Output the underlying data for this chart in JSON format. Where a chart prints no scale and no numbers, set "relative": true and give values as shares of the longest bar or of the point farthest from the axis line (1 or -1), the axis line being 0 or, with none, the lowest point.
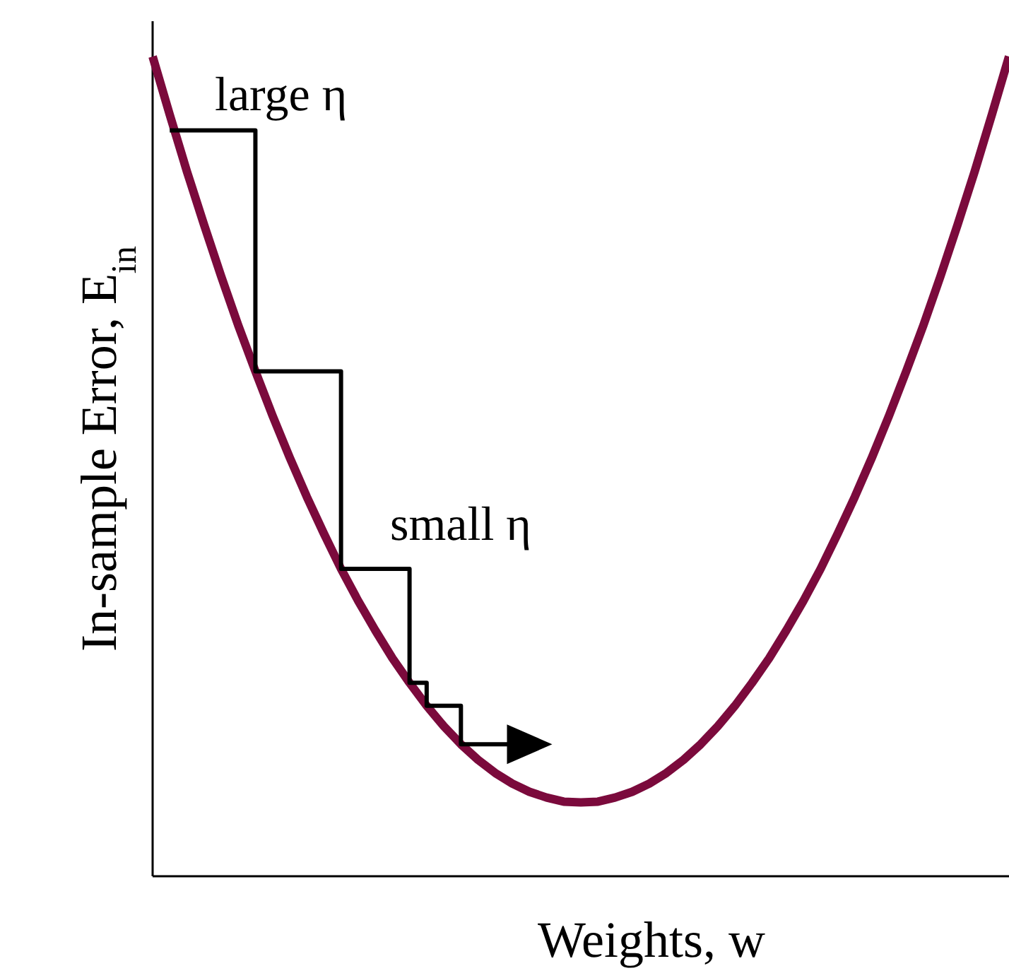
{
  "chart_data": {
    "type": "line",
    "relative": true,
    "xlabel": "Weights, w",
    "ylabel": "In-sample Error, E$_{in}$",
    "marker": "none",
    "line_style": "solid",
    "annotations": [
      "large η",
      "small η"
    ],
    "categories": [
      null,
      null,
      null,
      null,
      null,
      null,
      null,
      null,
      null,
      null,
      null,
      null,
      null,
      null,
      null,
      null,
      null,
      null,
      null,
      null,
      null,
      null,
      null,
      null,
      null,
      null,
      null,
      null,
      null,
      null,
      null,
      null,
      null,
      null,
      null,
      null,
      null,
      null,
      null,
      null,
      null,
      null,
      null,
      null,
      null,
      null,
      null,
      null,
      null,
      null,
      null
    ],
    "series": [
      {
        "color": "#7b0a3c",
        "values": [
          1.0,
          0.929,
          0.86,
          0.795,
          0.732,
          0.672,
          0.616,
          0.562,
          0.511,
          0.463,
          0.418,
          0.375,
          0.336,
          0.3,
          0.266,
          0.236,
          0.208,
          0.183,
          0.161,
          0.142,
          0.126,
          0.113,
          0.103,
          0.096,
          0.091,
          0.09,
          0.091,
          0.096,
          0.103,
          0.113,
          0.126,
          0.142,
          0.161,
          0.183,
          0.208,
          0.236,
          0.266,
          0.3,
          0.336,
          0.375,
          0.418,
          0.463,
          0.511,
          0.562,
          0.616,
          0.672,
          0.732,
          0.795,
          0.86,
          0.929,
          1.0
        ]
      },
      {
        "type": "step",
        "color": "#000000",
        "values": [
          null,
          0.91,
          0.91,
          0.91,
          0.91,
          0.91,
          0.616,
          0.616,
          0.616,
          0.616,
          0.616,
          0.375,
          0.375,
          0.375,
          0.375,
          0.236,
          0.208,
          0.208,
          0.161,
          0.161,
          0.161,
          0.161,
          0.161,
          0.161,
          null,
          null,
          null,
          null,
          null,
          null,
          null,
          null,
          null,
          null,
          null,
          null,
          null,
          null,
          null,
          null,
          null,
          null,
          null,
          null,
          null,
          null,
          null,
          null,
          null,
          null,
          null
        ]
      }
    ]
  }
}
